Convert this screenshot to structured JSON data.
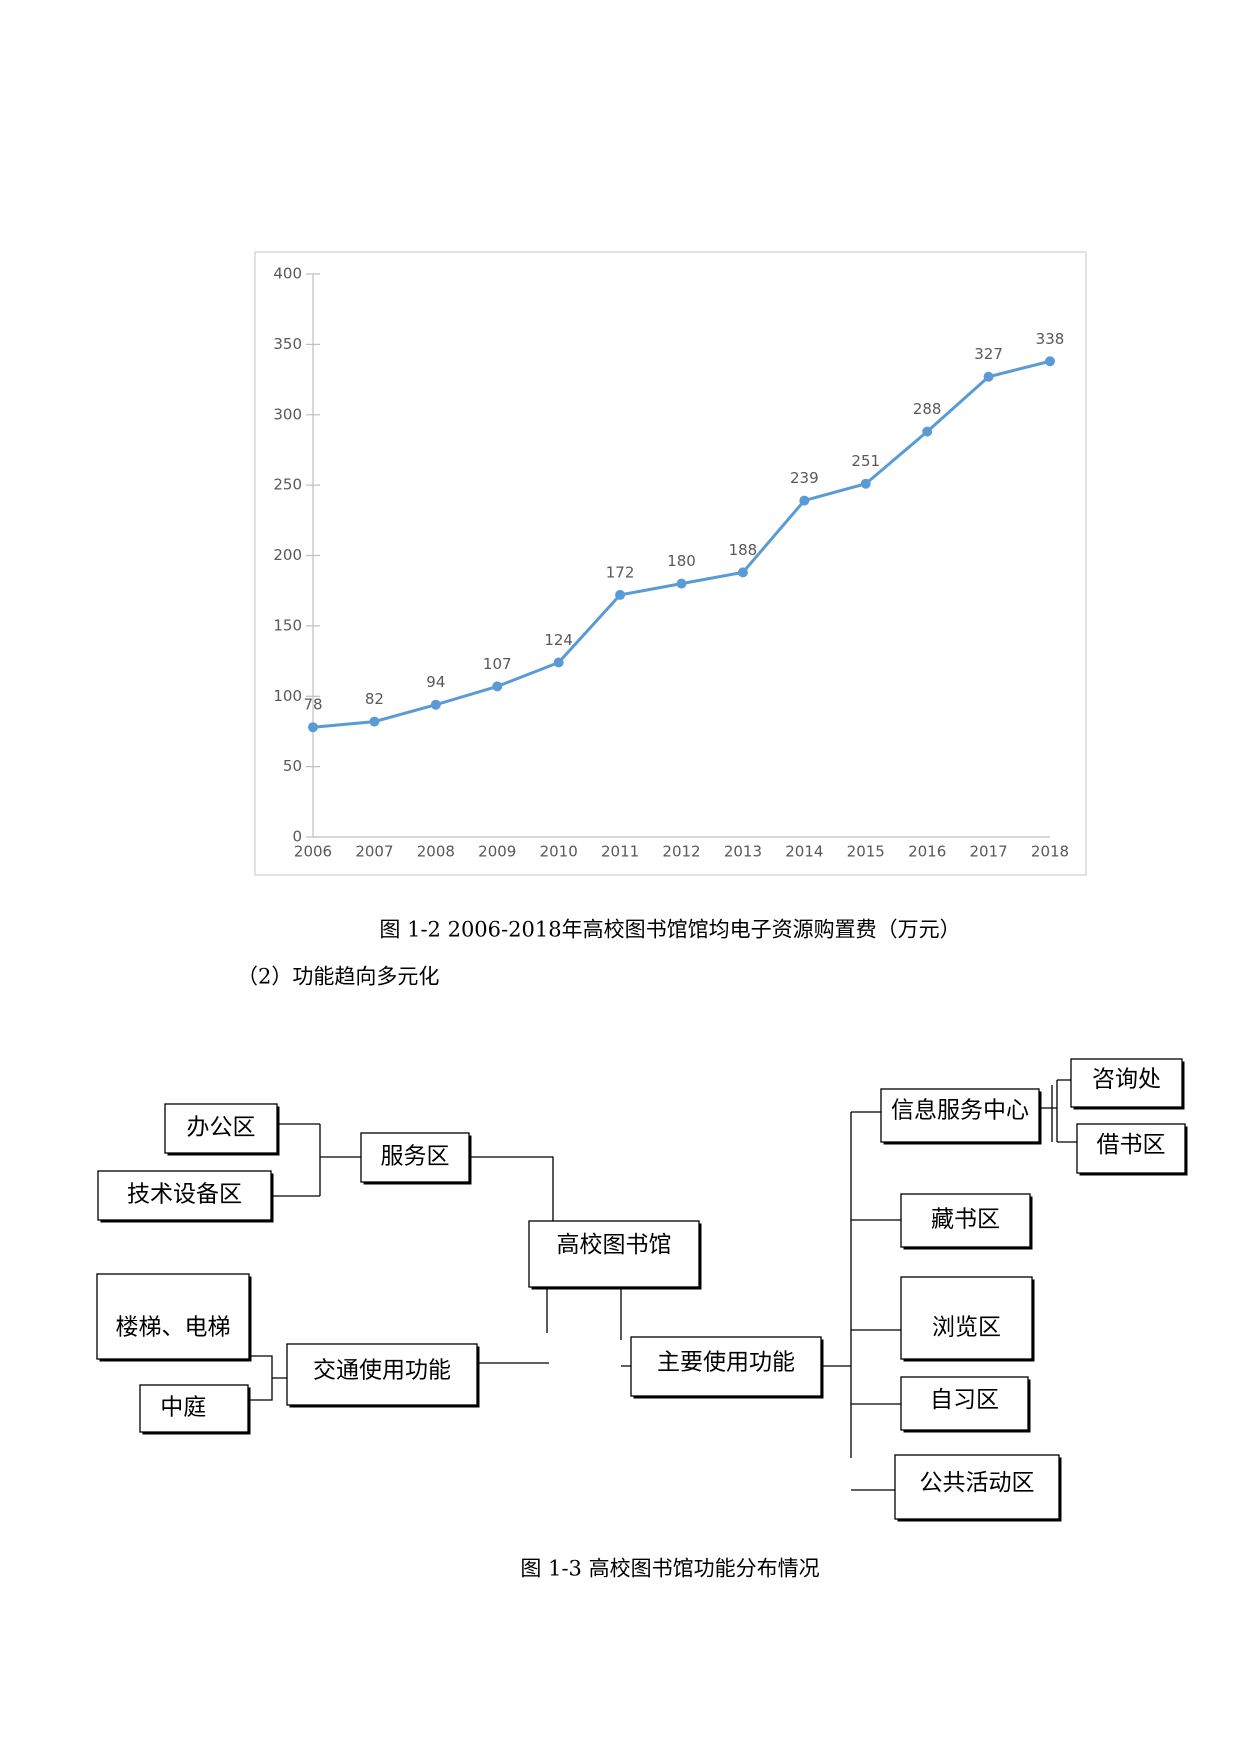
{
  "chart_data": {
    "type": "line",
    "categories": [
      "2006",
      "2007",
      "2008",
      "2009",
      "2010",
      "2011",
      "2012",
      "2013",
      "2014",
      "2015",
      "2016",
      "2017",
      "2018"
    ],
    "series": [
      {
        "name": "高校图书馆馆均电子资源购置费",
        "color": "#5b9bd5",
        "values": [
          78,
          82,
          94,
          107,
          124,
          172,
          180,
          188,
          239,
          251,
          288,
          327,
          338
        ]
      }
    ],
    "ylim": [
      0,
      400
    ],
    "yticks": [
      0,
      50,
      100,
      150,
      200,
      250,
      300,
      350,
      400
    ],
    "grid": false
  },
  "captions": [
    "图 1-2 2006-2018年高校图书馆馆均电子资源购置费（万元）",
    "图 1-3 高校图书馆功能分布情况"
  ],
  "heading": "（2）功能趋向多元化",
  "diagram": {
    "nodes": [
      {
        "label": "办公区"
      },
      {
        "label": "技术设备区"
      },
      {
        "label": "服务区"
      },
      {
        "label": "高校图书馆"
      },
      {
        "label": "楼梯、电梯"
      },
      {
        "label": "中庭"
      },
      {
        "label": "交通使用功能"
      },
      {
        "label": "主要使用功能"
      },
      {
        "label": "信息服务中心"
      },
      {
        "label": "咨询处"
      },
      {
        "label": "借书区"
      },
      {
        "label": "藏书区"
      },
      {
        "label": "浏览区"
      },
      {
        "label": "自习区"
      },
      {
        "label": "公共活动区"
      }
    ]
  }
}
